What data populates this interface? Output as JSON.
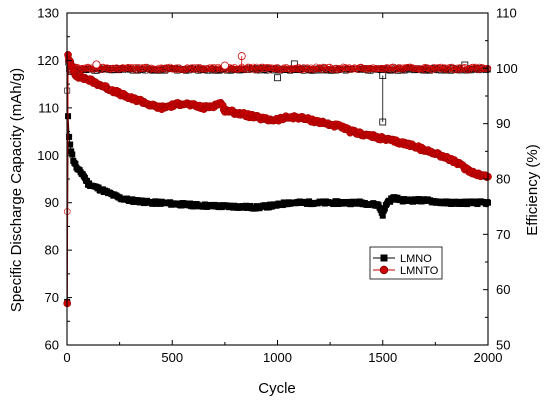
{
  "chart_data": {
    "type": "scatter",
    "xlabel": "Cycle",
    "ylabel_left": "Specific Discharge Capacity (mAh/g)",
    "ylabel_right": "Efficiency (%)",
    "xlim": [
      0,
      2000
    ],
    "ylim_left": [
      60,
      130
    ],
    "ylim_right": [
      50,
      110
    ],
    "x_ticks": [
      "0",
      "500",
      "1000",
      "1500",
      "2000"
    ],
    "y_ticks_left": [
      "60",
      "70",
      "80",
      "90",
      "100",
      "110",
      "120",
      "130"
    ],
    "y_ticks_right": [
      "50",
      "60",
      "70",
      "80",
      "90",
      "100",
      "110"
    ],
    "grid": false,
    "legend_position": "lower-right",
    "series": [
      {
        "name": "LMNO",
        "axis": "left",
        "marker": "square",
        "color": "#000000",
        "capacity": {
          "x": [
            1,
            5,
            10,
            20,
            30,
            50,
            75,
            100,
            150,
            200,
            250,
            300,
            350,
            400,
            450,
            500,
            600,
            700,
            800,
            900,
            1000,
            1050,
            1100,
            1200,
            1300,
            1400,
            1480,
            1500,
            1520,
            1550,
            1600,
            1700,
            1800,
            1900,
            2000
          ],
          "y": [
            69,
            108,
            104,
            101,
            99,
            97,
            96,
            94,
            93,
            92,
            91,
            90.5,
            90.3,
            90,
            90,
            89.8,
            89.5,
            89.3,
            89.2,
            89,
            89.5,
            90,
            90,
            90,
            90,
            90,
            89.5,
            87.5,
            90,
            91,
            90.5,
            90.5,
            90,
            90,
            90
          ]
        },
        "efficiency": {
          "x": [
            1,
            5,
            10,
            20,
            50,
            100,
            200,
            300,
            400,
            500,
            600,
            700,
            800,
            900,
            1000,
            1100,
            1200,
            1300,
            1400,
            1500,
            1600,
            1700,
            1800,
            1900,
            2000
          ],
          "y": [
            96,
            101,
            100,
            99.5,
            99.7,
            99.8,
            99.8,
            99.8,
            99.8,
            99.8,
            99.8,
            99.8,
            99.8,
            99.8,
            99.8,
            99.8,
            99.8,
            99.8,
            99.8,
            99.8,
            99.8,
            99.8,
            99.8,
            99.8,
            99.8
          ]
        },
        "outliers": [
          {
            "x": 1000,
            "y": 98.3
          },
          {
            "x": 1080,
            "y": 100.8
          },
          {
            "x": 1500,
            "y": 98.7
          },
          {
            "x": 1500,
            "y": 90.3
          },
          {
            "x": 1890,
            "y": 100.6
          }
        ]
      },
      {
        "name": "LMNTO",
        "axis": "left",
        "marker": "circle",
        "color": "#cc0000",
        "capacity": {
          "x": [
            1,
            5,
            10,
            20,
            40,
            60,
            100,
            150,
            200,
            250,
            300,
            350,
            400,
            450,
            500,
            550,
            600,
            650,
            700,
            730,
            750,
            800,
            850,
            900,
            950,
            1000,
            1050,
            1100,
            1150,
            1200,
            1250,
            1300,
            1350,
            1400,
            1450,
            1500,
            1550,
            1600,
            1650,
            1700,
            1750,
            1800,
            1850,
            1900,
            1950,
            2000
          ],
          "y": [
            69,
            121,
            120,
            119,
            117,
            116.5,
            116,
            115,
            114,
            113,
            112,
            111.5,
            110.5,
            110,
            110.5,
            111,
            110.5,
            110,
            110.5,
            111,
            109.5,
            109,
            108.5,
            108,
            107.5,
            107.5,
            108,
            108,
            107.5,
            107,
            106.5,
            106,
            105,
            104.5,
            104,
            103.5,
            103,
            102.5,
            102,
            101,
            100.5,
            99.5,
            98.5,
            97,
            96,
            95.5
          ]
        },
        "efficiency": {
          "x": [
            1,
            5,
            10,
            20,
            50,
            100,
            200,
            300,
            400,
            500,
            600,
            700,
            800,
            900,
            1000,
            1100,
            1200,
            1300,
            1400,
            1500,
            1600,
            1700,
            1800,
            1900,
            2000
          ],
          "y": [
            74,
            102,
            101,
            100.5,
            100,
            100,
            100,
            100,
            100,
            100,
            100,
            100,
            100,
            100,
            100,
            100,
            100,
            100,
            100,
            100,
            100,
            100,
            100,
            100,
            100
          ]
        },
        "outliers": [
          {
            "x": 830,
            "y": 102.2
          },
          {
            "x": 140,
            "y": 100.7
          },
          {
            "x": 750,
            "y": 100.5
          }
        ]
      }
    ]
  }
}
